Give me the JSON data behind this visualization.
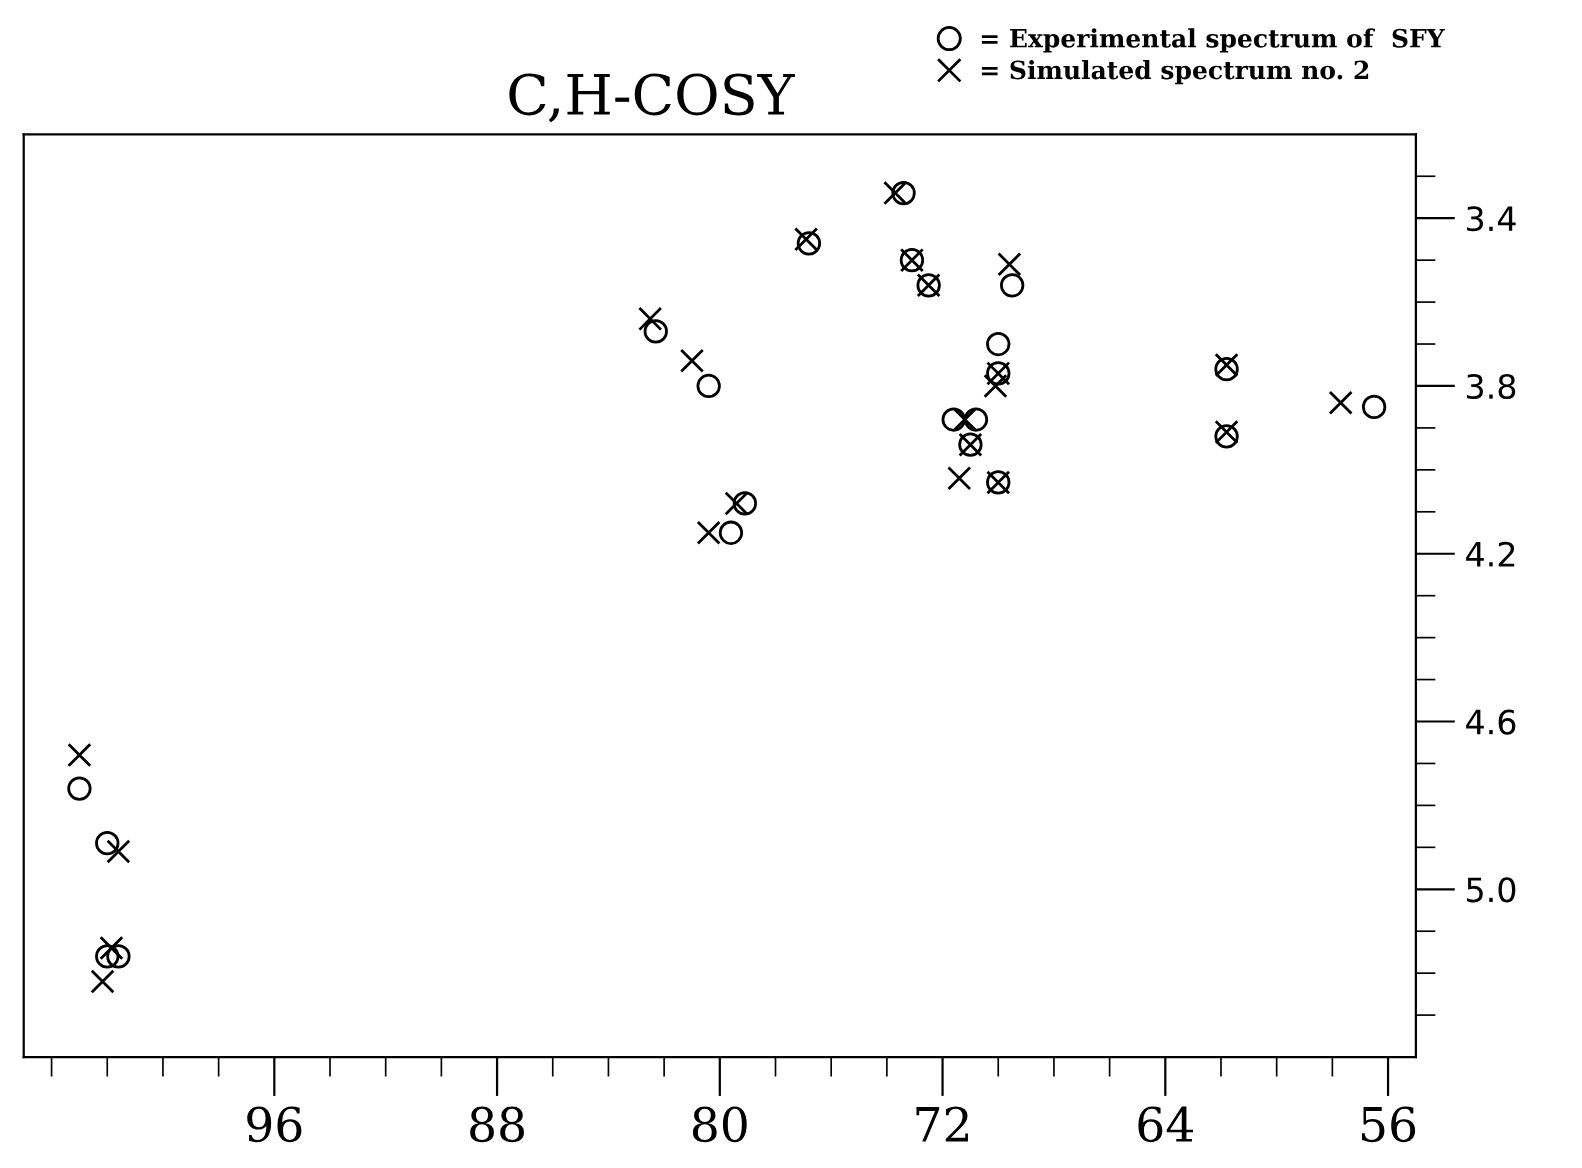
{
  "chart_data": {
    "type": "scatter",
    "title": "C,H-COSY",
    "legend": "top right",
    "grid": false,
    "xlim": [
      105,
      55
    ],
    "ylim": [
      5.4,
      3.2
    ],
    "xticks": [
      {
        "value": 104,
        "label": null
      },
      {
        "value": 102,
        "label": null
      },
      {
        "value": 100,
        "label": null
      },
      {
        "value": 98,
        "label": null
      },
      96,
      {
        "value": 94,
        "label": null
      },
      {
        "value": 92,
        "label": null
      },
      {
        "value": 90,
        "label": null
      },
      88,
      {
        "value": 86,
        "label": null
      },
      {
        "value": 84,
        "label": null
      },
      {
        "value": 82,
        "label": null
      },
      80,
      {
        "value": 78,
        "label": null
      },
      {
        "value": 76,
        "label": null
      },
      {
        "value": 74,
        "label": null
      },
      72,
      {
        "value": 70,
        "label": null
      },
      {
        "value": 68,
        "label": null
      },
      {
        "value": 66,
        "label": null
      },
      64,
      {
        "value": 62,
        "label": null
      },
      {
        "value": 60,
        "label": null
      },
      {
        "value": 58,
        "label": null
      },
      56
    ],
    "yticks": [
      {
        "value": 3.3,
        "label": null
      },
      3.4,
      {
        "value": 3.5,
        "label": null
      },
      {
        "value": 3.6,
        "label": null
      },
      {
        "value": 3.7,
        "label": null
      },
      3.8,
      {
        "value": 3.9,
        "label": null
      },
      {
        "value": 4.0,
        "label": null
      },
      {
        "value": 4.1,
        "label": null
      },
      4.2,
      {
        "value": 4.3,
        "label": null
      },
      {
        "value": 4.4,
        "label": null
      },
      {
        "value": 4.5,
        "label": null
      },
      4.6,
      {
        "value": 4.7,
        "label": null
      },
      {
        "value": 4.8,
        "label": null
      },
      {
        "value": 4.9,
        "label": null
      },
      {
        "value": 5.0,
        "label": "5.0"
      },
      {
        "value": 5.1,
        "label": null
      },
      {
        "value": 5.2,
        "label": null
      },
      {
        "value": 5.3,
        "label": null
      }
    ],
    "series": [
      {
        "name": "= Experimental spectrum of  SFY",
        "color": "#000000",
        "marker": "circle",
        "x": [
          103.0,
          102.0,
          102.0,
          101.6,
          82.3,
          80.4,
          79.1,
          79.6,
          76.8,
          73.4,
          73.1,
          72.5,
          69.5,
          70.0,
          70.0,
          71.6,
          70.8,
          71.0,
          70.0,
          61.8,
          61.8,
          56.5
        ],
        "values": [
          4.76,
          4.89,
          5.16,
          5.16,
          3.67,
          3.8,
          4.08,
          4.15,
          3.46,
          3.34,
          3.5,
          3.56,
          3.56,
          3.7,
          3.77,
          3.88,
          3.88,
          3.94,
          4.03,
          3.76,
          3.92,
          3.85
        ]
      },
      {
        "name": "= Simulated spectrum no. 2",
        "color": "#000000",
        "marker": "cross",
        "x": [
          103.0,
          101.6,
          101.85,
          102.17,
          82.5,
          81.0,
          79.4,
          80.4,
          76.9,
          73.7,
          73.1,
          72.5,
          69.6,
          70.0,
          70.1,
          71.2,
          71.0,
          71.4,
          70.0,
          61.8,
          61.8,
          57.7
        ],
        "values": [
          4.68,
          4.91,
          5.14,
          5.22,
          3.64,
          3.74,
          4.08,
          4.15,
          3.45,
          3.34,
          3.5,
          3.56,
          3.51,
          3.77,
          3.8,
          3.88,
          3.94,
          4.02,
          4.03,
          3.75,
          3.91,
          3.84
        ]
      }
    ]
  }
}
